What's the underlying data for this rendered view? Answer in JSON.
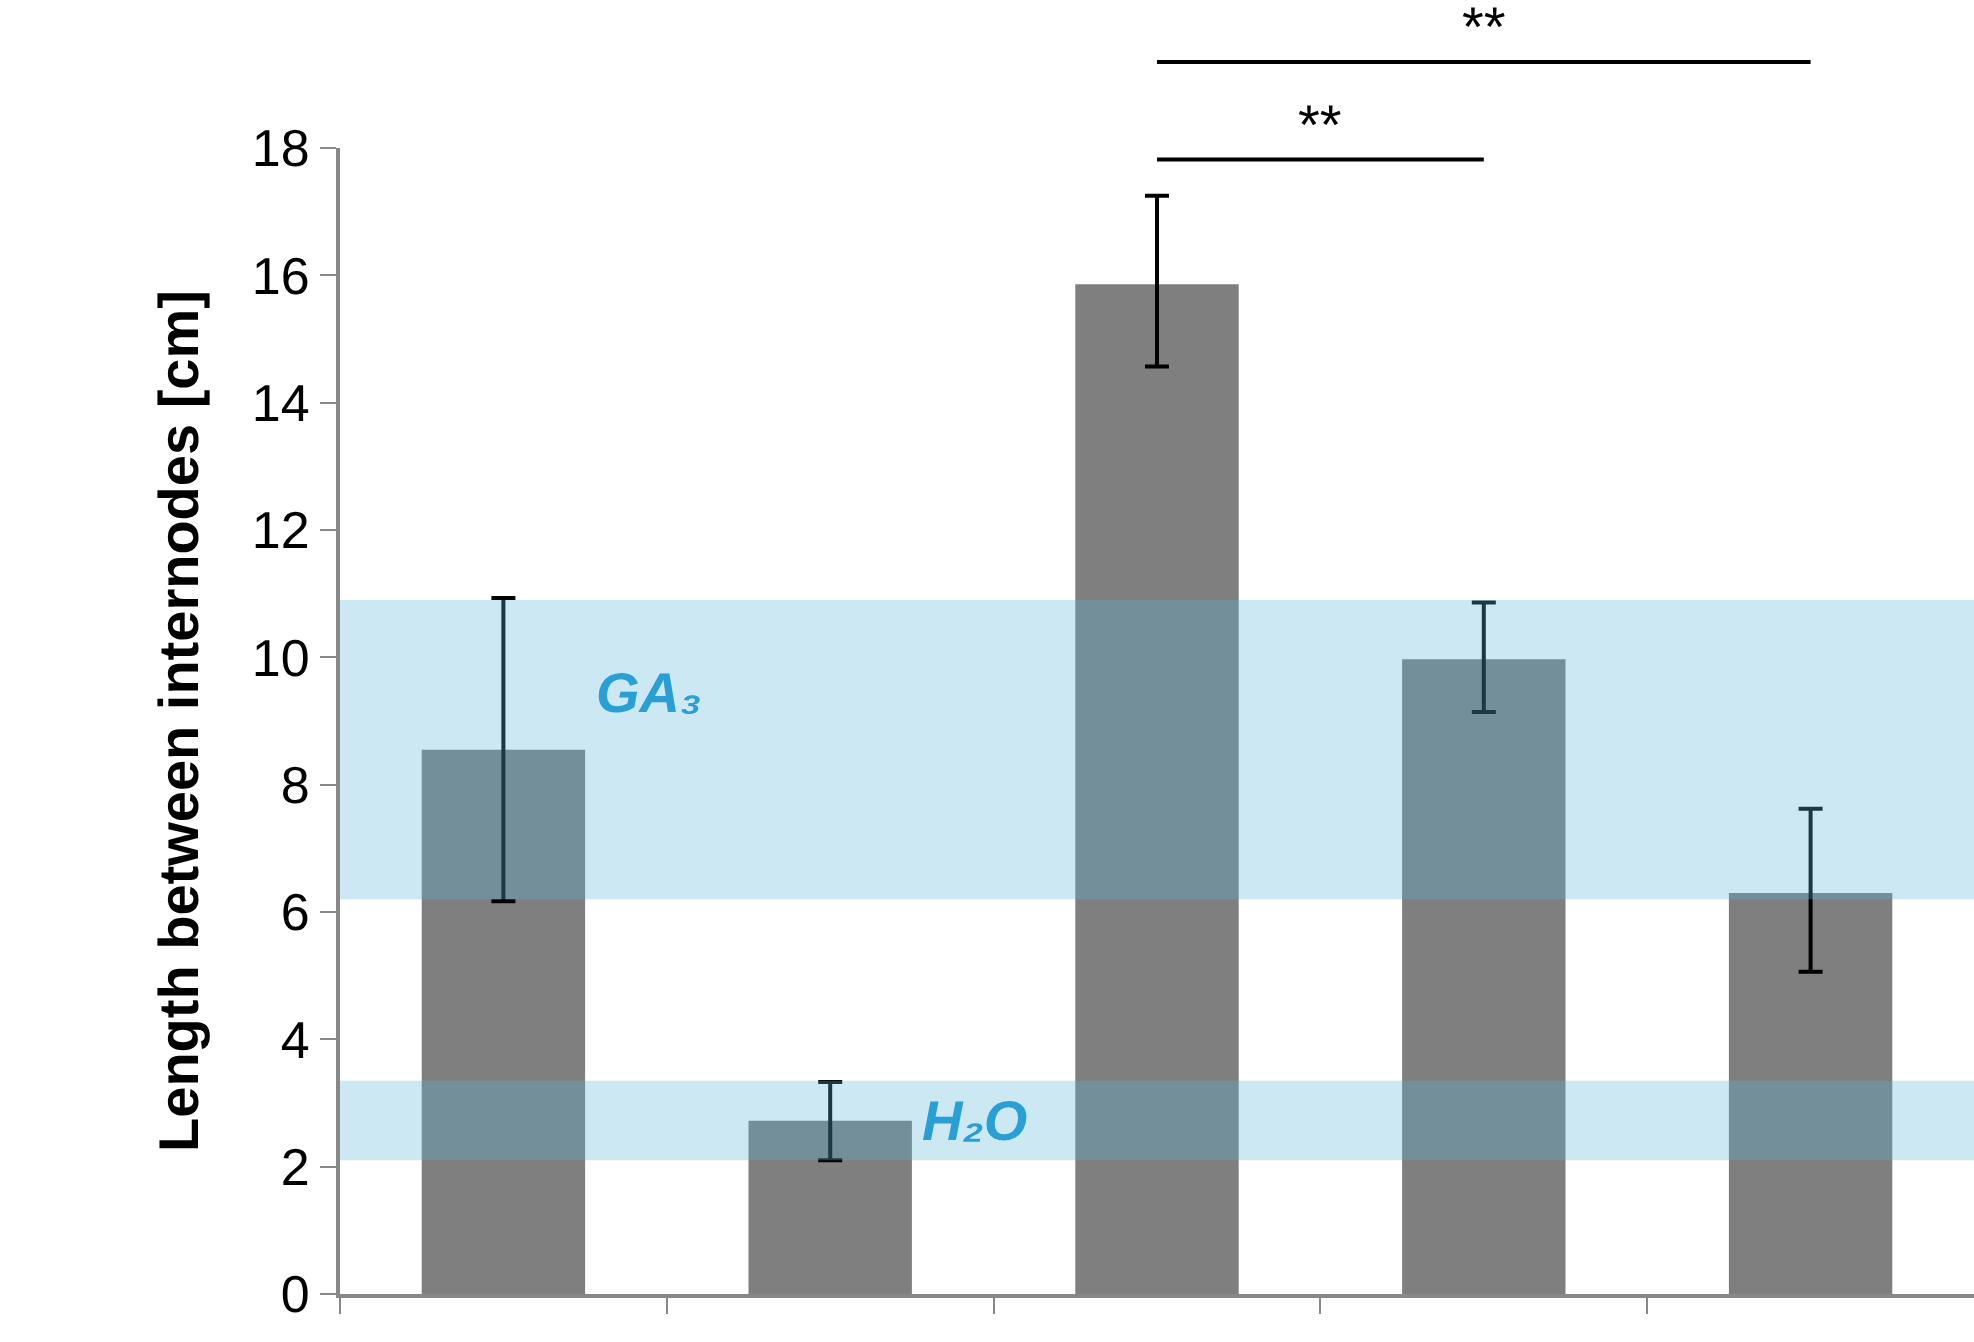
{
  "chart_data": {
    "type": "bar",
    "ylabel": "Length between internodes [cm]",
    "categories": [
      null,
      null,
      null,
      null,
      null
    ],
    "values": [
      8.55,
      2.72,
      15.86,
      9.97,
      6.3
    ],
    "errors": [
      [
        6.17,
        10.93
      ],
      [
        2.1,
        3.33
      ],
      [
        14.57,
        17.25
      ],
      [
        9.14,
        10.86
      ],
      [
        5.06,
        7.62
      ]
    ],
    "color": "#7f7f7f",
    "ylim": [
      0,
      18
    ],
    "yticks": [
      0,
      2,
      4,
      6,
      8,
      10,
      12,
      14,
      16,
      18
    ],
    "grid": false,
    "bands": [
      {
        "axis": "y",
        "from": 6.2,
        "to": 10.9,
        "label": "GA₃",
        "color": "#5ab8d8"
      },
      {
        "axis": "y",
        "from": 2.1,
        "to": 3.35,
        "label": "H₂O",
        "color": "#5ab8d8"
      }
    ],
    "annotations": [
      "**",
      "**"
    ]
  }
}
